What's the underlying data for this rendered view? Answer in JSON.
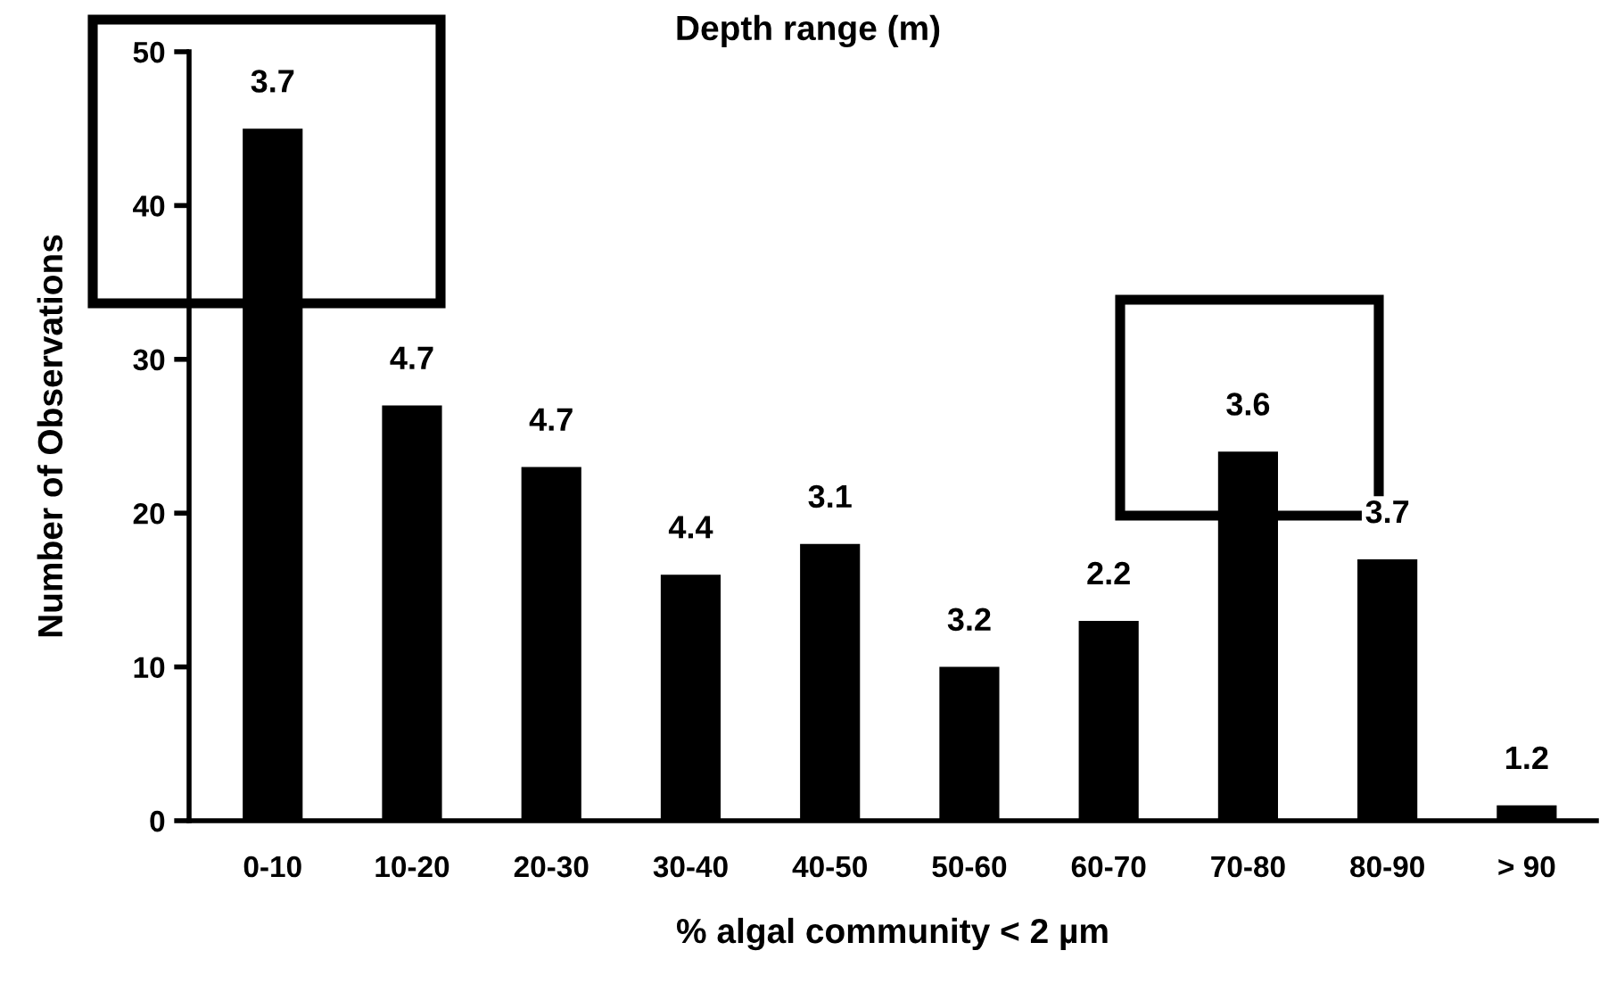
{
  "chart_data": {
    "type": "bar",
    "title": "Depth range (m)",
    "xlabel": "% algal community < 2 µm",
    "ylabel": "Number of Observations",
    "categories": [
      "0-10",
      "10-20",
      "20-30",
      "30-40",
      "40-50",
      "50-60",
      "60-70",
      "70-80",
      "80-90",
      "> 90"
    ],
    "values": [
      45,
      27,
      23,
      16,
      18,
      10,
      13,
      24,
      17,
      1
    ],
    "annotations": [
      {
        "text": "3.7",
        "x": "0-10",
        "y": 45
      },
      {
        "text": "4.7",
        "x": "10-20",
        "y": 27
      },
      {
        "text": "4.7",
        "x": "20-30",
        "y": 23
      },
      {
        "text": "4.4",
        "x": "30-40",
        "y": 16
      },
      {
        "text": "3.1",
        "x": "40-50",
        "y": 18
      },
      {
        "text": "3.2",
        "x": "50-60",
        "y": 10
      },
      {
        "text": "2.2",
        "x": "60-70",
        "y": 13
      },
      {
        "text": "3.6",
        "x": "70-80",
        "y": 24
      },
      {
        "text": "3.7",
        "x": "80-90",
        "y": 17
      },
      {
        "text": "1.2",
        "x": "> 90",
        "y": 1
      }
    ],
    "color": "#000000",
    "ylim": [
      0,
      50
    ],
    "yticks": [
      0,
      10,
      20,
      30,
      40,
      50
    ],
    "grid": false,
    "legend": false
  }
}
